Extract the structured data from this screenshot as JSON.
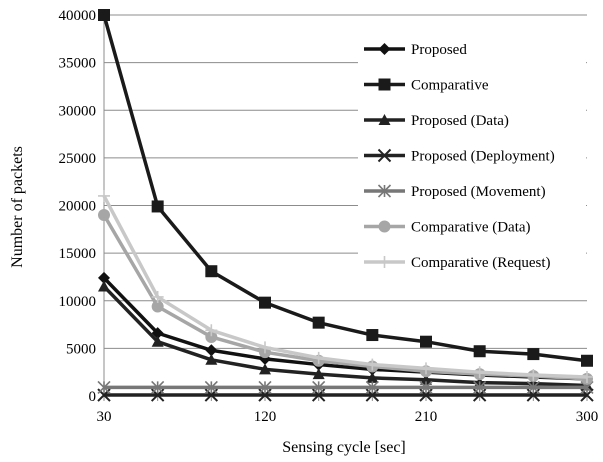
{
  "chart_data": {
    "type": "line",
    "title": "",
    "xlabel": "Sensing cycle [sec]",
    "ylabel": "Number of packets",
    "x": [
      30,
      60,
      90,
      120,
      150,
      180,
      210,
      240,
      270,
      300
    ],
    "x_tick_labels": [
      "30",
      "120",
      "210",
      "300"
    ],
    "x_tick_values": [
      30,
      120,
      210,
      300
    ],
    "ylim": [
      0,
      40000
    ],
    "y_ticks": [
      0,
      5000,
      10000,
      15000,
      20000,
      25000,
      30000,
      35000,
      40000
    ],
    "grid": "horizontal",
    "legend_position": "right",
    "series": [
      {
        "name": "Proposed",
        "marker": "diamond",
        "color": "#111111",
        "values": [
          12400,
          6600,
          4800,
          3900,
          3300,
          2800,
          2500,
          2200,
          2000,
          1800
        ]
      },
      {
        "name": "Comparative",
        "marker": "square",
        "color": "#1a1a1a",
        "values": [
          40000,
          19900,
          13100,
          9800,
          7700,
          6400,
          5700,
          4700,
          4400,
          3700
        ]
      },
      {
        "name": "Proposed (Data)",
        "marker": "triangle",
        "color": "#222222",
        "values": [
          11500,
          5700,
          3800,
          2800,
          2300,
          1900,
          1700,
          1400,
          1300,
          1100
        ]
      },
      {
        "name": "Proposed (Deployment)",
        "marker": "x",
        "color": "#222222",
        "values": [
          100,
          100,
          100,
          100,
          100,
          100,
          100,
          100,
          100,
          100
        ]
      },
      {
        "name": "Proposed (Movement)",
        "marker": "star",
        "color": "#777777",
        "values": [
          900,
          900,
          900,
          900,
          900,
          900,
          900,
          900,
          900,
          900
        ]
      },
      {
        "name": "Comparative (Data)",
        "marker": "circle",
        "color": "#a6a6a6",
        "values": [
          19000,
          9400,
          6200,
          4600,
          3700,
          3100,
          2600,
          2300,
          2100,
          1800
        ]
      },
      {
        "name": "Comparative (Request)",
        "marker": "plus",
        "color": "#c8c8c8",
        "values": [
          21000,
          10400,
          6900,
          5100,
          4000,
          3300,
          2900,
          2500,
          2200,
          2000
        ]
      }
    ]
  }
}
